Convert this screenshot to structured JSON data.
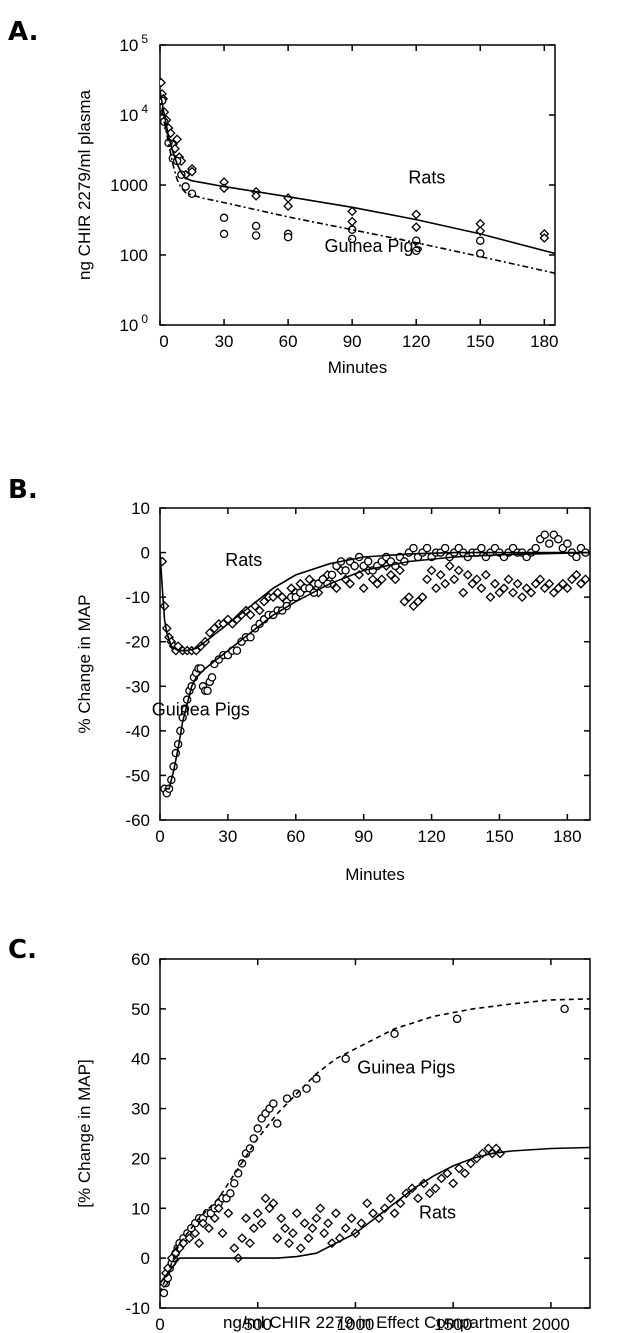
{
  "chart_data": [
    {
      "panel": "A.",
      "type": "scatter",
      "xlabel": "Minutes",
      "ylabel": "ng CHIR 2279/ml plasma",
      "xlim": [
        0,
        185
      ],
      "ylim": [
        10,
        100000
      ],
      "yscale": "log",
      "xticks": [
        0,
        30,
        60,
        90,
        120,
        150,
        180
      ],
      "yticks": [
        {
          "value": 10,
          "base": "10",
          "exp": "0"
        },
        {
          "value": 100,
          "base": "100",
          "exp": ""
        },
        {
          "value": 1000,
          "base": "1000",
          "exp": ""
        },
        {
          "value": 10000,
          "base": "10",
          "exp": "4"
        },
        {
          "value": 100000,
          "base": "10",
          "exp": "5"
        }
      ],
      "annotations": [
        {
          "text": "Rats",
          "x": 125,
          "y": 1050
        },
        {
          "text": "Guinea Pigs",
          "x": 100,
          "y": 110
        }
      ],
      "series": [
        {
          "name": "Rats",
          "marker": "diamond",
          "x": [
            0.5,
            1,
            1.5,
            2,
            3,
            4,
            5,
            6,
            7,
            8,
            9,
            10,
            12,
            15,
            15,
            30,
            30,
            45,
            45,
            60,
            60,
            90,
            90,
            120,
            120,
            150,
            150,
            180,
            180
          ],
          "y": [
            29000,
            20000,
            17000,
            11000,
            8500,
            6500,
            5500,
            3800,
            3300,
            4500,
            2500,
            2200,
            1400,
            1700,
            1550,
            1100,
            900,
            800,
            700,
            650,
            500,
            420,
            300,
            380,
            250,
            280,
            220,
            200,
            175
          ]
        },
        {
          "name": "Guinea Pigs",
          "marker": "circle",
          "x": [
            1,
            2,
            4,
            6,
            8,
            10,
            12,
            15,
            30,
            30,
            45,
            45,
            60,
            60,
            90,
            90,
            120,
            120,
            150,
            150
          ],
          "y": [
            16000,
            8000,
            4000,
            2400,
            2200,
            1400,
            950,
            750,
            340,
            200,
            260,
            190,
            200,
            180,
            230,
            170,
            160,
            115,
            160,
            105
          ]
        },
        {
          "name": "Rats fit",
          "kind": "line",
          "style": "solid",
          "x": [
            0,
            2,
            4,
            6,
            8,
            10,
            12,
            15,
            20,
            30,
            60,
            90,
            120,
            150,
            185
          ],
          "y": [
            22000,
            10000,
            5000,
            3000,
            2000,
            1500,
            1250,
            1150,
            1080,
            950,
            680,
            480,
            320,
            200,
            105
          ]
        },
        {
          "name": "Guinea Pigs fit",
          "kind": "line",
          "style": "dashdot",
          "x": [
            0,
            2,
            4,
            6,
            8,
            10,
            12,
            15,
            20,
            30,
            60,
            90,
            120,
            150,
            185
          ],
          "y": [
            20000,
            8000,
            4000,
            2000,
            1200,
            900,
            780,
            720,
            650,
            560,
            350,
            230,
            150,
            95,
            55
          ]
        }
      ]
    },
    {
      "panel": "B.",
      "type": "scatter",
      "xlabel": "Minutes",
      "ylabel": "% Change in MAP",
      "xlim": [
        0,
        190
      ],
      "ylim": [
        -60,
        10
      ],
      "xticks": [
        0,
        30,
        60,
        90,
        120,
        150,
        180
      ],
      "yticks": [
        -60,
        -50,
        -40,
        -30,
        -20,
        -10,
        0,
        10
      ],
      "annotations": [
        {
          "text": "Rats",
          "x": 37,
          "y": -3
        },
        {
          "text": "Guinea Pigs",
          "x": 18,
          "y": -36.5
        }
      ],
      "series": [
        {
          "name": "Rats",
          "marker": "diamond",
          "x": [
            1,
            2,
            3,
            4,
            5,
            6,
            7,
            8,
            10,
            12,
            14,
            16,
            18,
            20,
            22,
            24,
            26,
            28,
            30,
            32,
            34,
            36,
            38,
            40,
            42,
            44,
            46,
            48,
            50,
            52,
            54,
            56,
            58,
            60,
            62,
            64,
            66,
            68,
            70,
            72,
            74,
            76,
            78,
            80,
            82,
            84,
            86,
            88,
            90,
            92,
            94,
            96,
            98,
            100,
            102,
            104,
            106,
            108,
            110,
            112,
            114,
            116,
            118,
            120,
            122,
            124,
            126,
            128,
            130,
            132,
            134,
            136,
            138,
            140,
            142,
            144,
            146,
            148,
            150,
            152,
            154,
            156,
            158,
            160,
            162,
            164,
            166,
            168,
            170,
            172,
            174,
            176,
            178,
            180,
            182,
            184,
            186,
            188
          ],
          "y": [
            -2,
            -12,
            -17,
            -19,
            -20,
            -21,
            -22,
            -21,
            -22,
            -22,
            -22,
            -22,
            -21,
            -20,
            -18,
            -17,
            -16,
            -16,
            -15,
            -16,
            -15,
            -14,
            -13,
            -14,
            -12,
            -13,
            -11,
            -10,
            -10,
            -9,
            -10,
            -11,
            -8,
            -9,
            -7,
            -8,
            -6,
            -7,
            -9,
            -6,
            -5,
            -7,
            -8,
            -4,
            -6,
            -7,
            -3,
            -5,
            -8,
            -4,
            -6,
            -7,
            -6,
            -3,
            -5,
            -6,
            -4,
            -11,
            -10,
            -12,
            -11,
            -10,
            -6,
            -4,
            -8,
            -5,
            -7,
            -3,
            -6,
            -4,
            -9,
            -5,
            -7,
            -6,
            -8,
            -5,
            -10,
            -7,
            -9,
            -8,
            -6,
            -9,
            -7,
            -10,
            -8,
            -9,
            -7,
            -6,
            -8,
            -7,
            -9,
            -8,
            -7,
            -8,
            -6,
            -5,
            -7,
            -6
          ]
        },
        {
          "name": "Guinea Pigs",
          "marker": "circle",
          "x": [
            2,
            3,
            4,
            5,
            6,
            7,
            8,
            9,
            10,
            11,
            12,
            13,
            14,
            15,
            16,
            17,
            18,
            19,
            20,
            21,
            22,
            23,
            24,
            26,
            28,
            30,
            32,
            34,
            36,
            38,
            40,
            42,
            44,
            46,
            48,
            50,
            52,
            54,
            56,
            58,
            60,
            62,
            64,
            66,
            68,
            70,
            72,
            74,
            76,
            78,
            80,
            82,
            84,
            86,
            88,
            90,
            92,
            94,
            96,
            98,
            100,
            102,
            104,
            106,
            108,
            110,
            112,
            114,
            116,
            118,
            120,
            122,
            124,
            126,
            128,
            130,
            132,
            134,
            136,
            138,
            140,
            142,
            144,
            146,
            148,
            150,
            152,
            154,
            156,
            158,
            160,
            162,
            164,
            166,
            168,
            170,
            172,
            174,
            176,
            178,
            180,
            182,
            184,
            186,
            188
          ],
          "y": [
            -53,
            -54,
            -53,
            -51,
            -48,
            -45,
            -43,
            -40,
            -37,
            -35,
            -33,
            -31,
            -30,
            -28,
            -27,
            -26,
            -26,
            -30,
            -31,
            -31,
            -29,
            -28,
            -25,
            -24,
            -23,
            -23,
            -22,
            -22,
            -20,
            -19,
            -19,
            -17,
            -16,
            -15,
            -14,
            -14,
            -13,
            -13,
            -12,
            -10,
            -10,
            -9,
            -8,
            -8,
            -9,
            -7,
            -6,
            -7,
            -5,
            -3,
            -2,
            -4,
            -2,
            -3,
            -1,
            -3,
            -2,
            -4,
            -3,
            -2,
            -1,
            -2,
            -3,
            -1,
            -2,
            0,
            1,
            -1,
            0,
            1,
            -1,
            0,
            0,
            1,
            -1,
            0,
            1,
            0,
            -1,
            0,
            0,
            1,
            -1,
            0,
            1,
            0,
            -1,
            0,
            1,
            0,
            0,
            -1,
            0,
            1,
            3,
            4,
            2,
            4,
            3,
            1,
            2,
            0,
            -1,
            1,
            0
          ]
        },
        {
          "name": "Rats fit",
          "kind": "line",
          "style": "solid",
          "x": [
            0,
            1,
            2,
            3,
            5,
            8,
            12,
            16,
            20,
            30,
            40,
            50,
            60,
            75,
            90,
            110,
            130,
            150,
            170,
            190
          ],
          "y": [
            0,
            -8,
            -15,
            -18,
            -21,
            -22,
            -22,
            -21.5,
            -20,
            -16,
            -12,
            -8,
            -5,
            -2.5,
            -1,
            -0.3,
            0,
            0,
            0,
            0
          ]
        },
        {
          "name": "Guinea Pigs fit",
          "kind": "line",
          "style": "solid",
          "x": [
            2,
            4,
            6,
            8,
            10,
            12,
            14,
            16,
            18,
            20,
            25,
            30,
            40,
            50,
            60,
            75,
            90,
            110,
            130,
            150,
            190
          ],
          "y": [
            -53,
            -53,
            -49,
            -44,
            -38,
            -34,
            -30,
            -28,
            -27,
            -26,
            -24,
            -22,
            -18,
            -14,
            -11,
            -7,
            -4,
            -2,
            -1,
            -0.5,
            0
          ]
        }
      ]
    },
    {
      "panel": "C.",
      "type": "scatter",
      "xlabel": "ng/ml CHIR 2279 in Effect Compartment",
      "ylabel": "[% Change in MAP]",
      "xlim": [
        0,
        2200
      ],
      "ylim": [
        -10,
        60
      ],
      "xticks": [
        0,
        500,
        1000,
        1500,
        2000
      ],
      "yticks": [
        -10,
        0,
        10,
        20,
        30,
        40,
        50,
        60
      ],
      "annotations": [
        {
          "text": "Guinea Pigs",
          "x": 1260,
          "y": 37
        },
        {
          "text": "Rats",
          "x": 1420,
          "y": 8
        }
      ],
      "series": [
        {
          "name": "Guinea Pigs",
          "marker": "circle",
          "x": [
            20,
            30,
            40,
            50,
            60,
            70,
            80,
            90,
            100,
            120,
            140,
            160,
            180,
            200,
            220,
            240,
            260,
            280,
            300,
            320,
            340,
            360,
            380,
            400,
            420,
            440,
            460,
            480,
            500,
            520,
            540,
            560,
            580,
            600,
            650,
            700,
            750,
            800,
            950,
            1200,
            1520,
            2070
          ],
          "y": [
            -7,
            -5,
            -4,
            -2,
            -1,
            0,
            1,
            2,
            3,
            4,
            5,
            6,
            7,
            8,
            8,
            9,
            9,
            10,
            11,
            12,
            12,
            13,
            15,
            17,
            19,
            21,
            22,
            24,
            26,
            28,
            29,
            30,
            31,
            27,
            32,
            33,
            34,
            36,
            40,
            45,
            48,
            50
          ]
        },
        {
          "name": "Rats",
          "marker": "diamond",
          "x": [
            20,
            30,
            40,
            60,
            80,
            100,
            120,
            150,
            180,
            200,
            220,
            250,
            280,
            300,
            320,
            350,
            380,
            400,
            420,
            440,
            460,
            480,
            500,
            520,
            540,
            560,
            580,
            600,
            620,
            640,
            660,
            680,
            700,
            720,
            740,
            760,
            780,
            800,
            820,
            840,
            860,
            880,
            900,
            920,
            950,
            980,
            1000,
            1030,
            1060,
            1090,
            1120,
            1150,
            1180,
            1200,
            1230,
            1260,
            1290,
            1320,
            1350,
            1380,
            1410,
            1440,
            1470,
            1500,
            1530,
            1560,
            1590,
            1620,
            1650,
            1680,
            1700,
            1720,
            1740
          ],
          "y": [
            -5,
            -3,
            -2,
            0,
            1,
            2,
            3,
            4,
            5,
            3,
            7,
            6,
            8,
            10,
            5,
            9,
            2,
            0,
            4,
            8,
            3,
            6,
            9,
            7,
            12,
            10,
            11,
            4,
            8,
            6,
            3,
            5,
            9,
            2,
            7,
            4,
            6,
            8,
            10,
            5,
            7,
            3,
            9,
            4,
            6,
            8,
            5,
            7,
            11,
            9,
            8,
            10,
            12,
            9,
            11,
            13,
            14,
            12,
            15,
            13,
            14,
            16,
            17,
            15,
            18,
            17,
            19,
            20,
            21,
            22,
            21,
            22,
            21
          ]
        },
        {
          "name": "Guinea Pigs fit",
          "kind": "line",
          "style": "dashed",
          "x": [
            0,
            100,
            200,
            300,
            400,
            500,
            600,
            700,
            800,
            900,
            1000,
            1200,
            1400,
            1600,
            1800,
            2000,
            2200
          ],
          "y": [
            -7,
            3,
            8,
            12,
            18,
            24,
            29,
            33,
            37,
            40,
            42,
            46,
            48.5,
            50,
            51,
            51.8,
            52
          ]
        },
        {
          "name": "Rats fit",
          "kind": "line",
          "style": "solid",
          "x": [
            0,
            100,
            200,
            300,
            400,
            500,
            600,
            700,
            800,
            900,
            1000,
            1100,
            1200,
            1300,
            1400,
            1500,
            1600,
            1700,
            1800,
            2000,
            2200
          ],
          "y": [
            -5,
            0,
            0,
            0,
            0,
            0,
            0,
            0.3,
            1,
            3,
            5,
            8,
            11,
            14,
            16.5,
            18.5,
            20,
            21,
            21.5,
            22,
            22.2
          ]
        }
      ]
    }
  ]
}
